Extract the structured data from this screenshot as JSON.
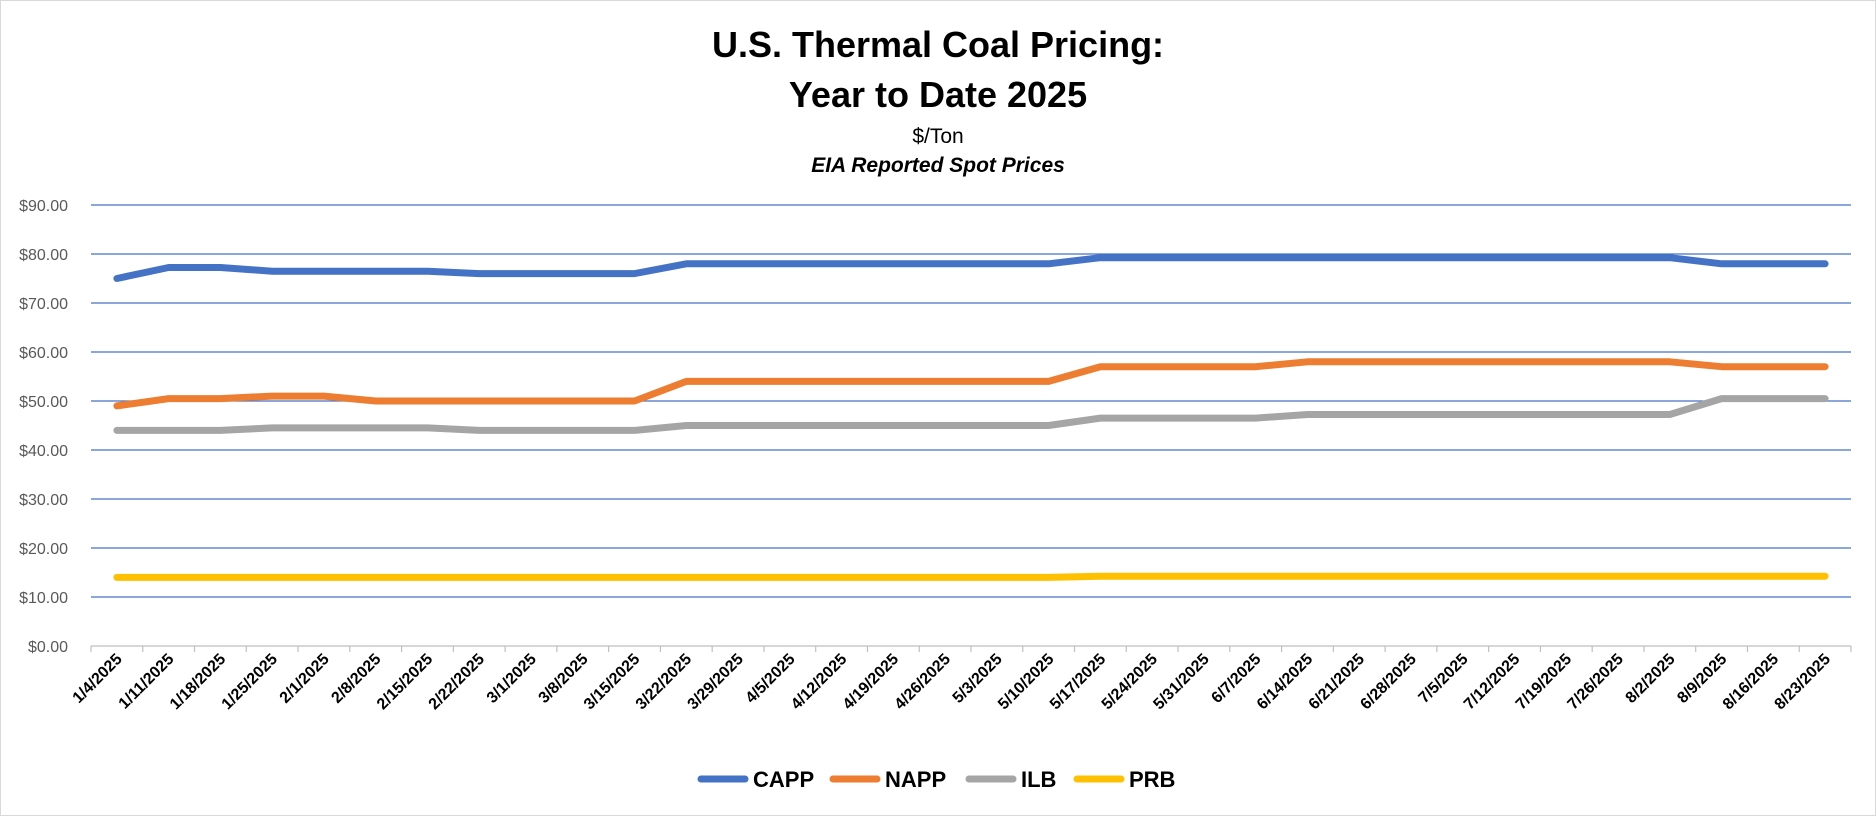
{
  "chart_data": {
    "type": "line",
    "title_line1": "U.S. Thermal Coal Pricing:",
    "title_line2": "Year to Date 2025",
    "subtitle": "$/Ton",
    "subtitle2": "EIA Reported Spot Prices",
    "ylim": [
      0,
      90
    ],
    "ytick_values": [
      0,
      10,
      20,
      30,
      40,
      50,
      60,
      70,
      80,
      90
    ],
    "ytick_labels": [
      "$0.00",
      "$10.00",
      "$20.00",
      "$30.00",
      "$40.00",
      "$50.00",
      "$60.00",
      "$70.00",
      "$80.00",
      "$90.00"
    ],
    "grid": true,
    "legend_position": "bottom",
    "x": [
      "1/4/2025",
      "1/11/2025",
      "1/18/2025",
      "1/25/2025",
      "2/1/2025",
      "2/8/2025",
      "2/15/2025",
      "2/22/2025",
      "3/1/2025",
      "3/8/2025",
      "3/15/2025",
      "3/22/2025",
      "3/29/2025",
      "4/5/2025",
      "4/12/2025",
      "4/19/2025",
      "4/26/2025",
      "5/3/2025",
      "5/10/2025",
      "5/17/2025",
      "5/24/2025",
      "5/31/2025",
      "6/7/2025",
      "6/14/2025",
      "6/21/2025",
      "6/28/2025",
      "7/5/2025",
      "7/12/2025",
      "7/19/2025",
      "7/26/2025",
      "8/2/2025",
      "8/9/2025",
      "8/16/2025",
      "8/23/2025"
    ],
    "series": [
      {
        "name": "CAPP",
        "color": "#4472c4",
        "values": [
          75.0,
          77.25,
          77.25,
          76.5,
          76.5,
          76.5,
          76.5,
          76.0,
          76.0,
          76.0,
          76.0,
          78.0,
          78.0,
          78.0,
          78.0,
          78.0,
          78.0,
          78.0,
          78.0,
          79.25,
          79.25,
          79.25,
          79.25,
          79.25,
          79.25,
          79.25,
          79.25,
          79.25,
          79.25,
          79.25,
          79.25,
          78.0,
          78.0,
          78.0
        ]
      },
      {
        "name": "NAPP",
        "color": "#ed7d31",
        "values": [
          49.0,
          50.5,
          50.5,
          51.0,
          51.0,
          50.0,
          50.0,
          50.0,
          50.0,
          50.0,
          50.0,
          54.0,
          54.0,
          54.0,
          54.0,
          54.0,
          54.0,
          54.0,
          54.0,
          57.0,
          57.0,
          57.0,
          57.0,
          58.0,
          58.0,
          58.0,
          58.0,
          58.0,
          58.0,
          58.0,
          58.0,
          57.0,
          57.0,
          57.0
        ]
      },
      {
        "name": "ILB",
        "color": "#a5a5a5",
        "values": [
          44.0,
          44.0,
          44.0,
          44.5,
          44.5,
          44.5,
          44.5,
          44.0,
          44.0,
          44.0,
          44.0,
          45.0,
          45.0,
          45.0,
          45.0,
          45.0,
          45.0,
          45.0,
          45.0,
          46.5,
          46.5,
          46.5,
          46.5,
          47.25,
          47.25,
          47.25,
          47.25,
          47.25,
          47.25,
          47.25,
          47.25,
          50.5,
          50.5,
          50.5
        ]
      },
      {
        "name": "PRB",
        "color": "#ffc000",
        "values": [
          14.0,
          14.0,
          14.0,
          14.0,
          14.0,
          14.0,
          14.0,
          14.0,
          14.0,
          14.0,
          14.0,
          14.0,
          14.0,
          14.0,
          14.0,
          14.0,
          14.0,
          14.0,
          14.0,
          14.25,
          14.25,
          14.25,
          14.25,
          14.25,
          14.25,
          14.25,
          14.25,
          14.25,
          14.25,
          14.25,
          14.25,
          14.25,
          14.25,
          14.25
        ]
      }
    ]
  }
}
